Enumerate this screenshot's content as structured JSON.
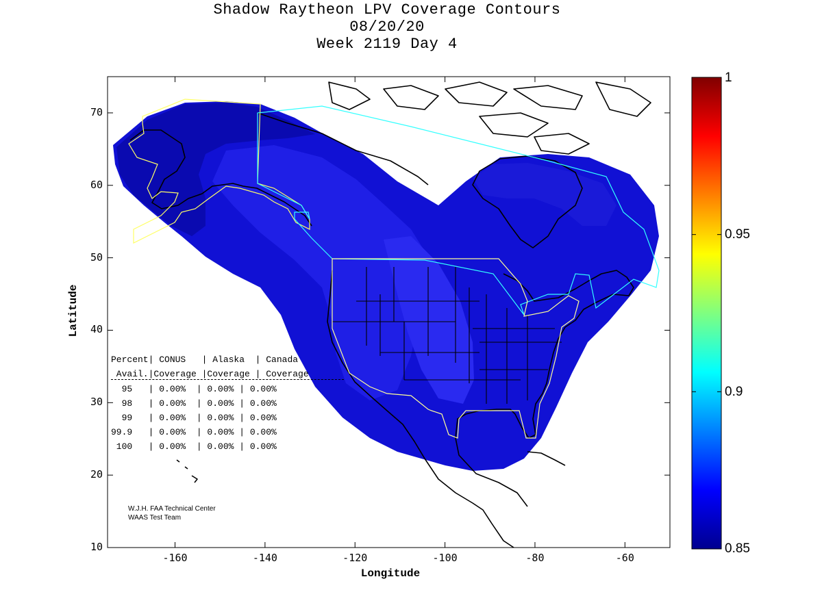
{
  "header": {
    "title_line1": "Shadow Raytheon LPV Coverage Contours",
    "title_line2": "08/20/20",
    "title_line3": "Week 2119 Day 4"
  },
  "axes": {
    "xlabel": "Longitude",
    "ylabel": "Latitude",
    "x_ticks": [
      "-160",
      "-140",
      "-120",
      "-100",
      "-80",
      "-60"
    ],
    "y_ticks": [
      "70",
      "60",
      "50",
      "40",
      "30",
      "20",
      "10"
    ]
  },
  "colorbar": {
    "labels": [
      "1",
      "0.95",
      "0.9",
      "0.85"
    ],
    "min": 0.85,
    "max": 1.0
  },
  "table": {
    "header1": "Percent| CONUS   | Alaska  | Canada",
    "header2": " Avail.|Coverage |Coverage | Coverage",
    "rows": [
      "  95   | 0.00%  | 0.00% | 0.00%",
      "  98   | 0.00%  | 0.00% | 0.00%",
      "  99   | 0.00%  | 0.00% | 0.00%",
      "99.9   | 0.00%  | 0.00% | 0.00%",
      " 100   | 0.00%  | 0.00% | 0.00%"
    ]
  },
  "credit": {
    "line1": "W.J.H. FAA Technical Center",
    "line2": "WAAS Test Team"
  },
  "chart_data": {
    "type": "contour-map",
    "title": "Shadow Raytheon LPV Coverage Contours",
    "subtitle": "08/20/20 Week 2119 Day 4",
    "xlabel": "Longitude",
    "ylabel": "Latitude",
    "xlim": [
      -175,
      -50
    ],
    "ylim": [
      10,
      75
    ],
    "colorbar_range": [
      0.85,
      1.0
    ],
    "coverage_levels": [
      {
        "region": "Outer coverage area (North Pacific, Alaska, Canada, Atlantic)",
        "availability": 0.855
      },
      {
        "region": "Alaska / Bering interior",
        "availability": 0.85
      },
      {
        "region": "Western CONUS / Central Canada",
        "availability": 0.87
      },
      {
        "region": "Central US plains",
        "availability": 0.875
      }
    ],
    "table": [
      {
        "percent_avail": "95",
        "conus": "0.00%",
        "alaska": "0.00%",
        "canada": "0.00%"
      },
      {
        "percent_avail": "98",
        "conus": "0.00%",
        "alaska": "0.00%",
        "canada": "0.00%"
      },
      {
        "percent_avail": "99",
        "conus": "0.00%",
        "alaska": "0.00%",
        "canada": "0.00%"
      },
      {
        "percent_avail": "99.9",
        "conus": "0.00%",
        "alaska": "0.00%",
        "canada": "0.00%"
      },
      {
        "percent_avail": "100",
        "conus": "0.00%",
        "alaska": "0.00%",
        "canada": "0.00%"
      }
    ]
  }
}
